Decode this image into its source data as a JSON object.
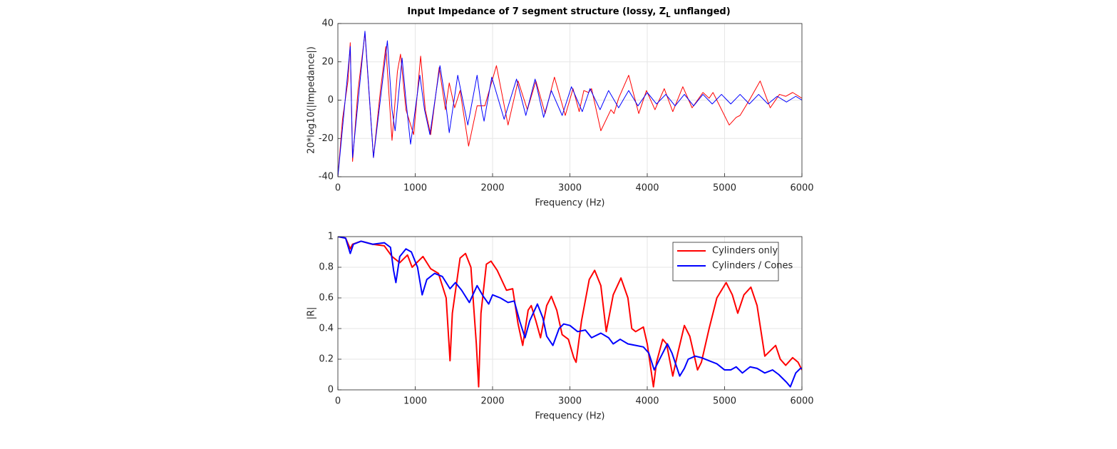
{
  "chart_data": [
    {
      "type": "line",
      "title_parts": [
        "Input Impedance of 7 segment structure (lossy, Z",
        "L",
        " unflanged)"
      ],
      "xlabel": "Frequency (Hz)",
      "ylabel": "20*log10(|Impedance|)",
      "xlim": [
        0,
        6000
      ],
      "ylim": [
        -40,
        40
      ],
      "xticks": [
        0,
        1000,
        2000,
        3000,
        4000,
        5000,
        6000
      ],
      "yticks": [
        -40,
        -20,
        0,
        20,
        40
      ],
      "grid": true,
      "line_width": 1,
      "series": [
        {
          "color": "#ff0000",
          "x": [
            0,
            60,
            130,
            160,
            190,
            260,
            350,
            460,
            550,
            620,
            700,
            770,
            810,
            880,
            980,
            1070,
            1130,
            1200,
            1310,
            1390,
            1440,
            1510,
            1580,
            1690,
            1800,
            1900,
            2050,
            2200,
            2330,
            2450,
            2560,
            2680,
            2800,
            2940,
            3040,
            3120,
            3180,
            3240,
            3280,
            3400,
            3530,
            3570,
            3630,
            3760,
            3890,
            3990,
            4100,
            4220,
            4330,
            4460,
            4580,
            4720,
            4800,
            4850,
            5060,
            5150,
            5200,
            5320,
            5460,
            5590,
            5710,
            5790,
            5880,
            6000
          ],
          "values": [
            -40,
            -10,
            10,
            30,
            -32,
            5,
            35,
            -30,
            5,
            28,
            -21,
            15,
            24,
            -5,
            -18,
            23,
            -5,
            -18,
            17,
            -5,
            9,
            -4,
            5,
            -24,
            -3,
            -3,
            18,
            -13,
            10,
            -5,
            10,
            -7,
            12,
            -8,
            6,
            -6,
            5,
            4,
            6,
            -16,
            -5,
            -7,
            1,
            13,
            -7,
            5,
            -5,
            6,
            -6,
            7,
            -4,
            4,
            1,
            4,
            -13,
            -9,
            -8,
            0,
            10,
            -4,
            3,
            2,
            4,
            1
          ]
        },
        {
          "color": "#0000ff",
          "x": [
            0,
            160,
            190,
            350,
            460,
            640,
            700,
            740,
            830,
            880,
            940,
            1060,
            1120,
            1190,
            1320,
            1390,
            1440,
            1550,
            1640,
            1680,
            1800,
            1860,
            1890,
            1990,
            2150,
            2310,
            2430,
            2550,
            2660,
            2760,
            2900,
            3020,
            3160,
            3260,
            3390,
            3500,
            3630,
            3760,
            3880,
            4000,
            4120,
            4240,
            4360,
            4480,
            4600,
            4720,
            4840,
            4960,
            5080,
            5200,
            5320,
            5440,
            5560,
            5680,
            5800,
            5920,
            6000
          ],
          "values": [
            -40,
            28,
            -30,
            36,
            -30,
            31,
            -5,
            -16,
            22,
            0,
            -23,
            13,
            -5,
            -18,
            18,
            0,
            -17,
            13,
            -5,
            -13,
            13,
            -5,
            -11,
            12,
            -10,
            11,
            -8,
            11,
            -9,
            5,
            -8,
            7,
            -6,
            6,
            -5,
            5,
            -4,
            5,
            -3,
            4,
            -2,
            3,
            -3,
            3,
            -3,
            3,
            -2,
            3,
            -2,
            3,
            -2,
            3,
            -2,
            2,
            -1,
            2,
            0
          ]
        }
      ]
    },
    {
      "type": "line",
      "xlabel": "Frequency (Hz)",
      "ylabel": "|R|",
      "xlim": [
        0,
        6000
      ],
      "ylim": [
        0,
        1
      ],
      "xticks": [
        0,
        1000,
        2000,
        3000,
        4000,
        5000,
        6000
      ],
      "yticks": [
        0,
        0.2,
        0.4,
        0.6,
        0.8,
        1
      ],
      "grid": true,
      "line_width": 2,
      "legend": "upper right",
      "series": [
        {
          "name": "Cylinders only",
          "color": "#ff0000",
          "x": [
            0,
            100,
            160,
            190,
            300,
            450,
            600,
            700,
            800,
            900,
            960,
            1100,
            1200,
            1300,
            1400,
            1450,
            1480,
            1580,
            1650,
            1720,
            1790,
            1820,
            1850,
            1920,
            1980,
            2060,
            2180,
            2260,
            2330,
            2390,
            2460,
            2500,
            2560,
            2620,
            2700,
            2760,
            2830,
            2900,
            2980,
            3050,
            3080,
            3150,
            3250,
            3320,
            3400,
            3470,
            3560,
            3660,
            3750,
            3800,
            3850,
            3950,
            4000,
            4080,
            4120,
            4200,
            4250,
            4330,
            4400,
            4480,
            4550,
            4650,
            4700,
            4800,
            4900,
            5020,
            5100,
            5170,
            5250,
            5340,
            5420,
            5520,
            5600,
            5660,
            5720,
            5790,
            5880,
            5950,
            6000
          ],
          "values": [
            1,
            0.99,
            0.92,
            0.95,
            0.97,
            0.95,
            0.94,
            0.87,
            0.83,
            0.88,
            0.8,
            0.87,
            0.79,
            0.76,
            0.6,
            0.19,
            0.5,
            0.86,
            0.89,
            0.8,
            0.3,
            0.02,
            0.5,
            0.82,
            0.84,
            0.78,
            0.65,
            0.66,
            0.43,
            0.29,
            0.52,
            0.55,
            0.45,
            0.34,
            0.55,
            0.61,
            0.52,
            0.36,
            0.33,
            0.21,
            0.18,
            0.45,
            0.72,
            0.78,
            0.68,
            0.38,
            0.62,
            0.73,
            0.6,
            0.4,
            0.38,
            0.41,
            0.3,
            0.02,
            0.18,
            0.33,
            0.3,
            0.09,
            0.25,
            0.42,
            0.35,
            0.13,
            0.18,
            0.4,
            0.6,
            0.7,
            0.62,
            0.5,
            0.62,
            0.67,
            0.55,
            0.22,
            0.26,
            0.29,
            0.2,
            0.16,
            0.21,
            0.18,
            0.13
          ]
        },
        {
          "name": "Cylinders / Cones",
          "color": "#0000ff",
          "x": [
            0,
            100,
            160,
            200,
            300,
            450,
            600,
            680,
            720,
            750,
            800,
            880,
            950,
            1030,
            1090,
            1150,
            1250,
            1350,
            1450,
            1520,
            1600,
            1700,
            1800,
            1880,
            1950,
            2000,
            2100,
            2200,
            2280,
            2350,
            2420,
            2480,
            2580,
            2650,
            2700,
            2780,
            2860,
            2920,
            3000,
            3100,
            3200,
            3280,
            3400,
            3500,
            3560,
            3650,
            3750,
            3850,
            3950,
            4020,
            4090,
            4180,
            4260,
            4320,
            4420,
            4480,
            4530,
            4620,
            4700,
            4800,
            4900,
            5000,
            5080,
            5150,
            5230,
            5330,
            5420,
            5520,
            5620,
            5700,
            5800,
            5850,
            5920,
            5980,
            6000
          ],
          "values": [
            1,
            0.99,
            0.89,
            0.95,
            0.97,
            0.95,
            0.96,
            0.93,
            0.78,
            0.7,
            0.87,
            0.92,
            0.9,
            0.8,
            0.62,
            0.72,
            0.76,
            0.74,
            0.66,
            0.7,
            0.65,
            0.57,
            0.68,
            0.61,
            0.56,
            0.62,
            0.6,
            0.57,
            0.58,
            0.45,
            0.34,
            0.45,
            0.56,
            0.47,
            0.35,
            0.29,
            0.4,
            0.43,
            0.42,
            0.38,
            0.39,
            0.34,
            0.37,
            0.34,
            0.3,
            0.33,
            0.3,
            0.29,
            0.28,
            0.24,
            0.13,
            0.22,
            0.3,
            0.24,
            0.09,
            0.14,
            0.2,
            0.22,
            0.21,
            0.19,
            0.17,
            0.13,
            0.13,
            0.15,
            0.11,
            0.15,
            0.14,
            0.11,
            0.13,
            0.1,
            0.05,
            0.02,
            0.11,
            0.14,
            0.14
          ]
        }
      ]
    }
  ]
}
